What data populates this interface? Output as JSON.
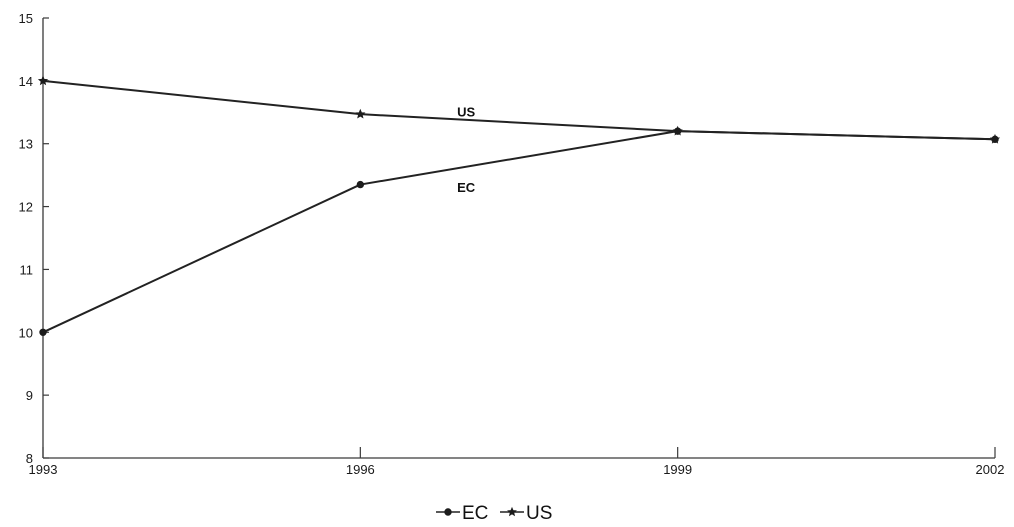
{
  "chart_data": {
    "type": "line",
    "title": "",
    "xlabel": "",
    "ylabel": "",
    "x": [
      1993,
      1996,
      1999,
      2002
    ],
    "x_tick_labels": [
      "1993",
      "1996",
      "1999",
      "2002"
    ],
    "ylim": [
      8,
      15
    ],
    "y_ticks": [
      8,
      9,
      10,
      11,
      12,
      13,
      14,
      15
    ],
    "y_tick_labels": [
      "8",
      "9",
      "10",
      "11",
      "12",
      "13",
      "14",
      "15"
    ],
    "grid": false,
    "legend_position": "bottom-center",
    "series": [
      {
        "name": "EC",
        "values": [
          10.0,
          12.35,
          13.2,
          13.07
        ],
        "marker": "circle",
        "color": "#222222"
      },
      {
        "name": "US",
        "values": [
          14.0,
          13.47,
          13.2,
          13.07
        ],
        "marker": "star",
        "color": "#222222"
      }
    ],
    "annotations": [
      {
        "text": "US",
        "series": "US",
        "x": 1997.0,
        "y": 13.43
      },
      {
        "text": "EC",
        "series": "EC",
        "x": 1997.0,
        "y": 12.23
      }
    ]
  }
}
